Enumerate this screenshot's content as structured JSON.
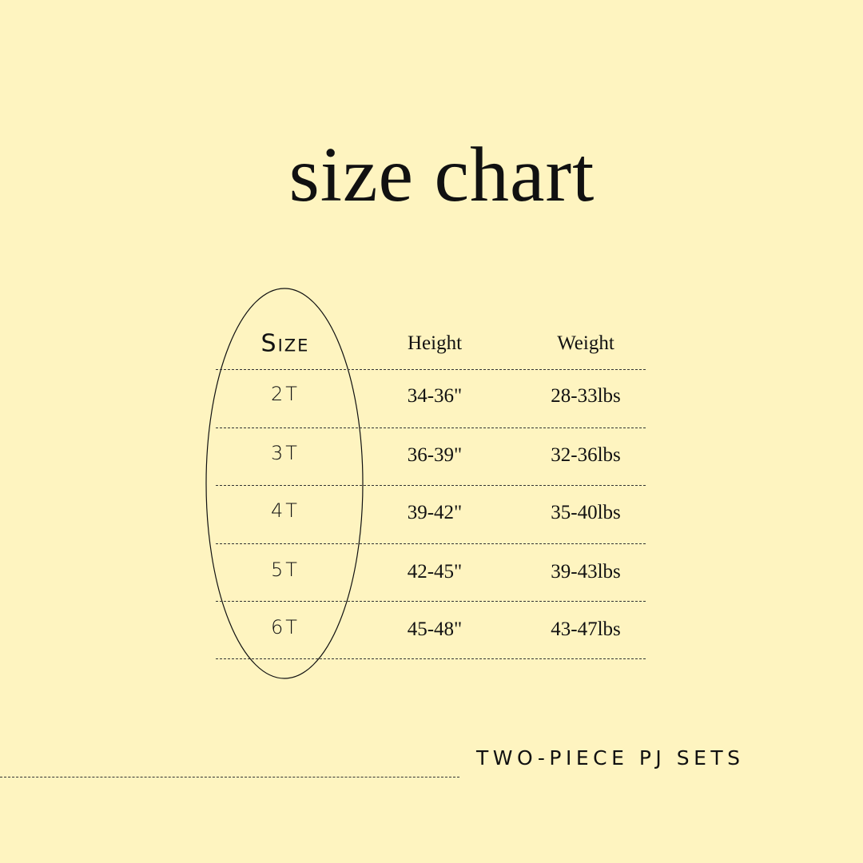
{
  "title": "size chart",
  "table": {
    "headers": [
      "Size",
      "Height",
      "Weight"
    ],
    "rows": [
      [
        "2T",
        "34-36\"",
        "28-33lbs"
      ],
      [
        "3T",
        "36-39\"",
        "32-36lbs"
      ],
      [
        "4T",
        "39-42\"",
        "35-40lbs"
      ],
      [
        "5T",
        "42-45\"",
        "39-43lbs"
      ],
      [
        "6T",
        "45-48\"",
        "43-47lbs"
      ]
    ]
  },
  "tagline": "TWO-PIECE PJ SETS",
  "colors": {
    "background": "#fef4c0",
    "text": "#111111"
  }
}
